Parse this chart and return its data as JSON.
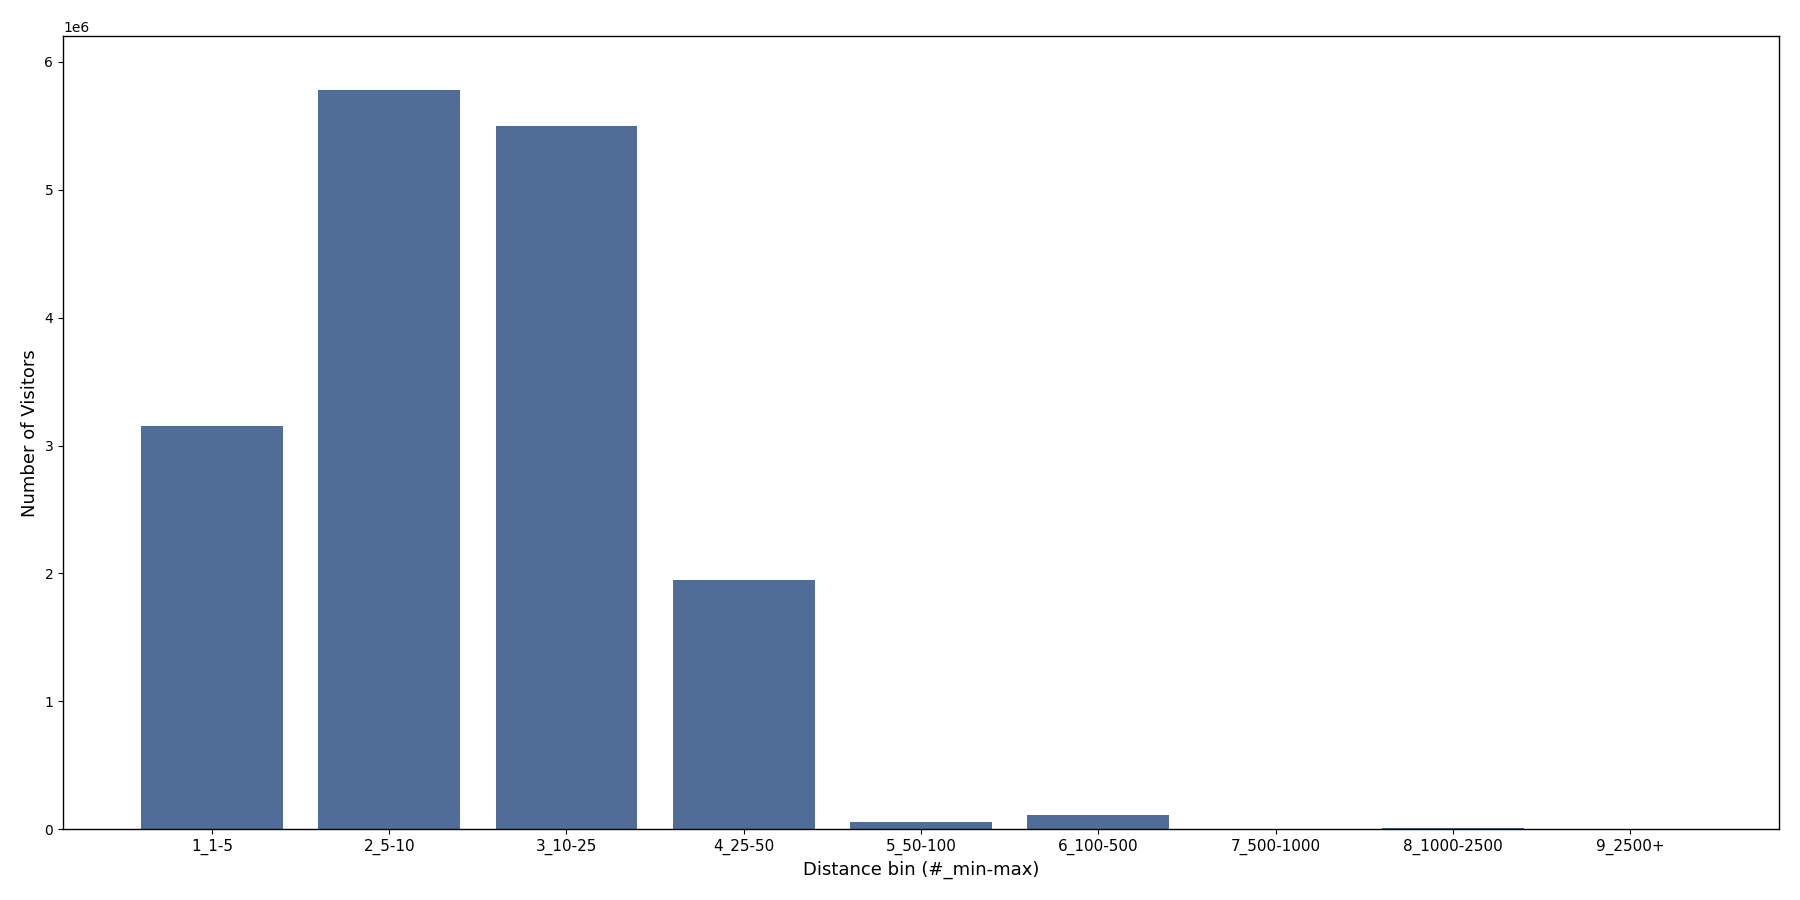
{
  "categories": [
    "1_1-5",
    "2_5-10",
    "3_10-25",
    "4_25-50",
    "5_50-100",
    "6_100-500",
    "7_500-1000",
    "8_1000-2500",
    "9_2500+"
  ],
  "values": [
    3150000,
    5780000,
    5500000,
    1950000,
    60000,
    115000,
    5000,
    8000,
    2000
  ],
  "bar_color": "#4f6d96",
  "xlabel": "Distance bin (#_min-max)",
  "ylabel": "Number of Visitors",
  "ylim": [
    0,
    6200000
  ],
  "figsize": [
    18.0,
    9.0
  ],
  "dpi": 100
}
